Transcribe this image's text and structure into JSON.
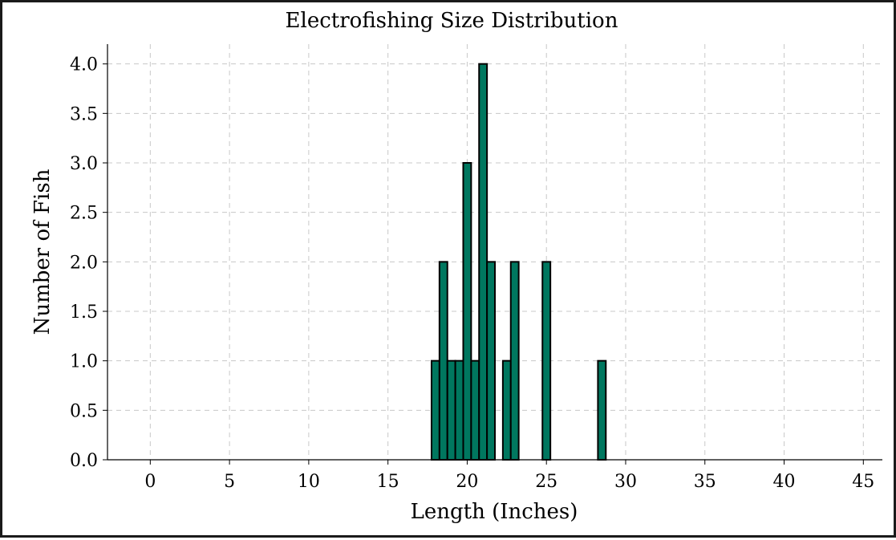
{
  "chart_data": {
    "type": "bar",
    "title": "Electrofishing Size Distribution",
    "xlabel": "Length (Inches)",
    "ylabel": "Number of Fish",
    "xlim": [
      -2.7,
      46.2
    ],
    "ylim": [
      0,
      4.2
    ],
    "xticks": [
      0,
      5,
      10,
      15,
      20,
      25,
      30,
      35,
      40,
      45
    ],
    "xtick_labels": [
      "0",
      "5",
      "10",
      "15",
      "20",
      "25",
      "30",
      "35",
      "40",
      "45"
    ],
    "yticks": [
      0.0,
      0.5,
      1.0,
      1.5,
      2.0,
      2.5,
      3.0,
      3.5,
      4.0
    ],
    "ytick_labels": [
      "0.0",
      "0.5",
      "1.0",
      "1.5",
      "2.0",
      "2.5",
      "3.0",
      "3.5",
      "4.0"
    ],
    "grid": true,
    "bar_color": "#00775f",
    "bar_edge_color": "#000000",
    "bin_width": 0.5,
    "bars": [
      {
        "x": 18.0,
        "count": 1
      },
      {
        "x": 18.5,
        "count": 2
      },
      {
        "x": 19.0,
        "count": 1
      },
      {
        "x": 19.5,
        "count": 1
      },
      {
        "x": 20.0,
        "count": 3
      },
      {
        "x": 20.5,
        "count": 1
      },
      {
        "x": 21.0,
        "count": 4
      },
      {
        "x": 21.5,
        "count": 2
      },
      {
        "x": 22.5,
        "count": 1
      },
      {
        "x": 23.0,
        "count": 2
      },
      {
        "x": 25.0,
        "count": 2
      },
      {
        "x": 28.5,
        "count": 1
      }
    ]
  }
}
